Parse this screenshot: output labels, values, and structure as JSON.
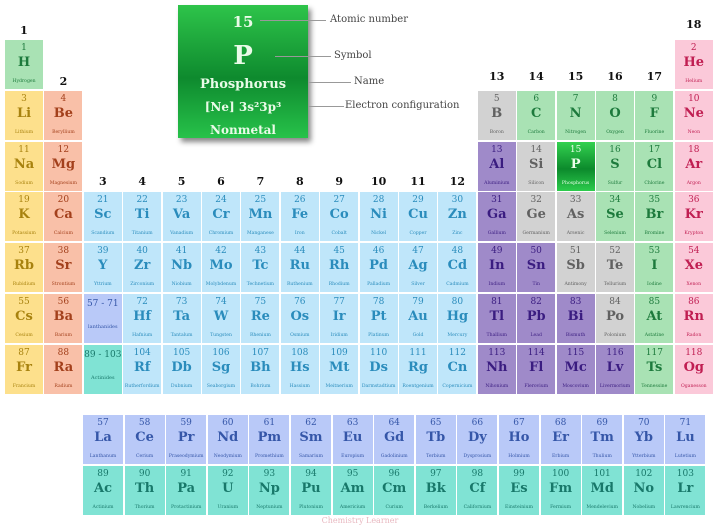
{
  "key": {
    "atomic_number": "15",
    "symbol": "P",
    "name": "Phosphorus",
    "electron_config": "[Ne] 3s²3p³",
    "category": "Nonmetal",
    "labels": {
      "atomic_number": "Atomic number",
      "symbol": "Symbol",
      "name": "Name",
      "electron_config": "Electron configuration"
    }
  },
  "group_labels": [
    "1",
    "2",
    "3",
    "4",
    "5",
    "6",
    "7",
    "8",
    "9",
    "10",
    "11",
    "12",
    "13",
    "14",
    "15",
    "16",
    "17",
    "18"
  ],
  "highlighted_element": "P",
  "category_colors": {
    "nm": {
      "bg": "#a9e2b4",
      "fg": "#1d7a3c"
    },
    "al": {
      "bg": "#fde08c",
      "fg": "#a8820e"
    },
    "ae": {
      "bg": "#f9c0a8",
      "fg": "#a3401c"
    },
    "tm": {
      "bg": "#bfe6fa",
      "fg": "#2a8cbc"
    },
    "la": {
      "bg": "#b9c9f8",
      "fg": "#3556a8"
    },
    "ac": {
      "bg": "#80e3d4",
      "fg": "#18786a"
    },
    "pt": {
      "bg": "#9f8ac9",
      "fg": "#3a1c80"
    },
    "md": {
      "bg": "#d2d2d2",
      "fg": "#616161"
    },
    "ng": {
      "bg": "#fbc9d9",
      "fg": "#c01e52"
    },
    "hl": {
      "bg": "#1aa83a",
      "fg": "#eaffea"
    }
  },
  "series_placeholders": [
    {
      "range": "57 - 71",
      "name": "lanthanides",
      "cat": "la",
      "period": 6,
      "group": 3
    },
    {
      "range": "89 - 103",
      "name": "Actinides",
      "cat": "ac",
      "period": 7,
      "group": 3
    }
  ],
  "elements": [
    [
      1,
      "H",
      "Hydrogen",
      "nm",
      1,
      1
    ],
    [
      2,
      "He",
      "Helium",
      "ng",
      1,
      18
    ],
    [
      3,
      "Li",
      "Lithium",
      "al",
      2,
      1
    ],
    [
      4,
      "Be",
      "Beryllium",
      "ae",
      2,
      2
    ],
    [
      5,
      "B",
      "Boron",
      "md",
      2,
      13
    ],
    [
      6,
      "C",
      "Carbon",
      "nm",
      2,
      14
    ],
    [
      7,
      "N",
      "Nitrogen",
      "nm",
      2,
      15
    ],
    [
      8,
      "O",
      "Oxygen",
      "nm",
      2,
      16
    ],
    [
      9,
      "F",
      "Fluorine",
      "nm",
      2,
      17
    ],
    [
      10,
      "Ne",
      "Neon",
      "ng",
      2,
      18
    ],
    [
      11,
      "Na",
      "Sodium",
      "al",
      3,
      1
    ],
    [
      12,
      "Mg",
      "Magnesium",
      "ae",
      3,
      2
    ],
    [
      13,
      "Al",
      "Aluminium",
      "pt",
      3,
      13
    ],
    [
      14,
      "Si",
      "Silicon",
      "md",
      3,
      14
    ],
    [
      15,
      "P",
      "Phosphorus",
      "hl",
      3,
      15
    ],
    [
      16,
      "S",
      "Sulfur",
      "nm",
      3,
      16
    ],
    [
      17,
      "Cl",
      "Chlorine",
      "nm",
      3,
      17
    ],
    [
      18,
      "Ar",
      "Argon",
      "ng",
      3,
      18
    ],
    [
      19,
      "K",
      "Potassium",
      "al",
      4,
      1
    ],
    [
      20,
      "Ca",
      "Calcium",
      "ae",
      4,
      2
    ],
    [
      21,
      "Sc",
      "Scandium",
      "tm",
      4,
      3
    ],
    [
      22,
      "Ti",
      "Titanium",
      "tm",
      4,
      4
    ],
    [
      23,
      "Va",
      "Vanadium",
      "tm",
      4,
      5
    ],
    [
      24,
      "Cr",
      "Chromium",
      "tm",
      4,
      6
    ],
    [
      25,
      "Mn",
      "Manganese",
      "tm",
      4,
      7
    ],
    [
      26,
      "Fe",
      "Iron",
      "tm",
      4,
      8
    ],
    [
      27,
      "Co",
      "Cobalt",
      "tm",
      4,
      9
    ],
    [
      28,
      "Ni",
      "Nickel",
      "tm",
      4,
      10
    ],
    [
      29,
      "Cu",
      "Copper",
      "tm",
      4,
      11
    ],
    [
      30,
      "Zn",
      "Zinc",
      "tm",
      4,
      12
    ],
    [
      31,
      "Ga",
      "Gallium",
      "pt",
      4,
      13
    ],
    [
      32,
      "Ge",
      "Germanium",
      "md",
      4,
      14
    ],
    [
      33,
      "As",
      "Arsenic",
      "md",
      4,
      15
    ],
    [
      34,
      "Se",
      "Selenium",
      "nm",
      4,
      16
    ],
    [
      35,
      "Br",
      "Bromine",
      "nm",
      4,
      17
    ],
    [
      36,
      "Kr",
      "Krypton",
      "ng",
      4,
      18
    ],
    [
      37,
      "Rb",
      "Rubidium",
      "al",
      5,
      1
    ],
    [
      38,
      "Sr",
      "Strontium",
      "ae",
      5,
      2
    ],
    [
      39,
      "Y",
      "Yttrium",
      "tm",
      5,
      3
    ],
    [
      40,
      "Zr",
      "Zirconium",
      "tm",
      5,
      4
    ],
    [
      41,
      "Nb",
      "Niobium",
      "tm",
      5,
      5
    ],
    [
      42,
      "Mo",
      "Molybdenum",
      "tm",
      5,
      6
    ],
    [
      43,
      "Tc",
      "Technetium",
      "tm",
      5,
      7
    ],
    [
      44,
      "Ru",
      "Ruthenium",
      "tm",
      5,
      8
    ],
    [
      45,
      "Rh",
      "Rhodium",
      "tm",
      5,
      9
    ],
    [
      46,
      "Pd",
      "Palladium",
      "tm",
      5,
      10
    ],
    [
      47,
      "Ag",
      "Silver",
      "tm",
      5,
      11
    ],
    [
      48,
      "Cd",
      "Cadmium",
      "tm",
      5,
      12
    ],
    [
      49,
      "In",
      "Indium",
      "pt",
      5,
      13
    ],
    [
      50,
      "Sn",
      "Tin",
      "pt",
      5,
      14
    ],
    [
      51,
      "Sb",
      "Antimony",
      "md",
      5,
      15
    ],
    [
      52,
      "Te",
      "Tellurium",
      "md",
      5,
      16
    ],
    [
      53,
      "I",
      "Iodine",
      "nm",
      5,
      17
    ],
    [
      54,
      "Xe",
      "Xenon",
      "ng",
      5,
      18
    ],
    [
      55,
      "Cs",
      "Cesium",
      "al",
      6,
      1
    ],
    [
      56,
      "Ba",
      "Barium",
      "ae",
      6,
      2
    ],
    [
      72,
      "Hf",
      "Hafnium",
      "tm",
      6,
      4
    ],
    [
      73,
      "Ta",
      "Tantalum",
      "tm",
      6,
      5
    ],
    [
      74,
      "W",
      "Tungsten",
      "tm",
      6,
      6
    ],
    [
      75,
      "Re",
      "Rhenium",
      "tm",
      6,
      7
    ],
    [
      76,
      "Os",
      "Osmium",
      "tm",
      6,
      8
    ],
    [
      77,
      "Ir",
      "Iridium",
      "tm",
      6,
      9
    ],
    [
      78,
      "Pt",
      "Platinum",
      "tm",
      6,
      10
    ],
    [
      79,
      "Au",
      "Gold",
      "tm",
      6,
      11
    ],
    [
      80,
      "Hg",
      "Mercury",
      "tm",
      6,
      12
    ],
    [
      81,
      "Tl",
      "Thallium",
      "pt",
      6,
      13
    ],
    [
      82,
      "Pb",
      "Lead",
      "pt",
      6,
      14
    ],
    [
      83,
      "Bi",
      "Bismuth",
      "pt",
      6,
      15
    ],
    [
      84,
      "Po",
      "Polonium",
      "md",
      6,
      16
    ],
    [
      85,
      "At",
      "Astatine",
      "nm",
      6,
      17
    ],
    [
      86,
      "Rn",
      "Radon",
      "ng",
      6,
      18
    ],
    [
      87,
      "Fr",
      "Francium",
      "al",
      7,
      1
    ],
    [
      88,
      "Ra",
      "Radium",
      "ae",
      7,
      2
    ],
    [
      104,
      "Rf",
      "Rutherfordium",
      "tm",
      7,
      4
    ],
    [
      105,
      "Db",
      "Dubnium",
      "tm",
      7,
      5
    ],
    [
      106,
      "Sg",
      "Seaborgium",
      "tm",
      7,
      6
    ],
    [
      107,
      "Bh",
      "Bohrium",
      "tm",
      7,
      7
    ],
    [
      108,
      "Hs",
      "Hassium",
      "tm",
      7,
      8
    ],
    [
      109,
      "Mt",
      "Meitnerium",
      "tm",
      7,
      9
    ],
    [
      110,
      "Ds",
      "Darmstadtium",
      "tm",
      7,
      10
    ],
    [
      111,
      "Rg",
      "Roentgenium",
      "tm",
      7,
      11
    ],
    [
      112,
      "Cn",
      "Copernicium",
      "tm",
      7,
      12
    ],
    [
      113,
      "Nh",
      "Nihonium",
      "pt",
      7,
      13
    ],
    [
      114,
      "Fl",
      "Flerovium",
      "pt",
      7,
      14
    ],
    [
      115,
      "Mc",
      "Moscovium",
      "pt",
      7,
      15
    ],
    [
      116,
      "Lv",
      "Livermorium",
      "pt",
      7,
      16
    ],
    [
      117,
      "Ts",
      "Tennessine",
      "nm",
      7,
      17
    ],
    [
      118,
      "Og",
      "Oganesson",
      "ng",
      7,
      18
    ]
  ],
  "lanthanides": [
    [
      57,
      "La",
      "Lanthanum"
    ],
    [
      58,
      "Ce",
      "Cerium"
    ],
    [
      59,
      "Pr",
      "Praseodymium"
    ],
    [
      60,
      "Nd",
      "Neodymium"
    ],
    [
      61,
      "Pm",
      "Promethium"
    ],
    [
      62,
      "Sm",
      "Samarium"
    ],
    [
      63,
      "Eu",
      "Europium"
    ],
    [
      64,
      "Gd",
      "Gadolinium"
    ],
    [
      65,
      "Tb",
      "Terbium"
    ],
    [
      66,
      "Dy",
      "Dysprosium"
    ],
    [
      67,
      "Ho",
      "Holmium"
    ],
    [
      68,
      "Er",
      "Erbium"
    ],
    [
      69,
      "Tm",
      "Thulium"
    ],
    [
      70,
      "Yb",
      "Ytterbium"
    ],
    [
      71,
      "Lu",
      "Lutetium"
    ]
  ],
  "actinides": [
    [
      89,
      "Ac",
      "Actinium"
    ],
    [
      90,
      "Th",
      "Thorium"
    ],
    [
      91,
      "Pa",
      "Protactinium"
    ],
    [
      92,
      "U",
      "Uranium"
    ],
    [
      93,
      "Np",
      "Neptunium"
    ],
    [
      94,
      "Pu",
      "Plutonium"
    ],
    [
      95,
      "Am",
      "Americium"
    ],
    [
      96,
      "Cm",
      "Curium"
    ],
    [
      97,
      "Bk",
      "Berkelium"
    ],
    [
      98,
      "Cf",
      "Californium"
    ],
    [
      99,
      "Es",
      "Einsteinium"
    ],
    [
      100,
      "Fm",
      "Fermium"
    ],
    [
      101,
      "Md",
      "Mendelevium"
    ],
    [
      102,
      "No",
      "Nobelium"
    ],
    [
      103,
      "Lr",
      "Lawrencium"
    ]
  ],
  "watermark": "Chemistry Learner"
}
